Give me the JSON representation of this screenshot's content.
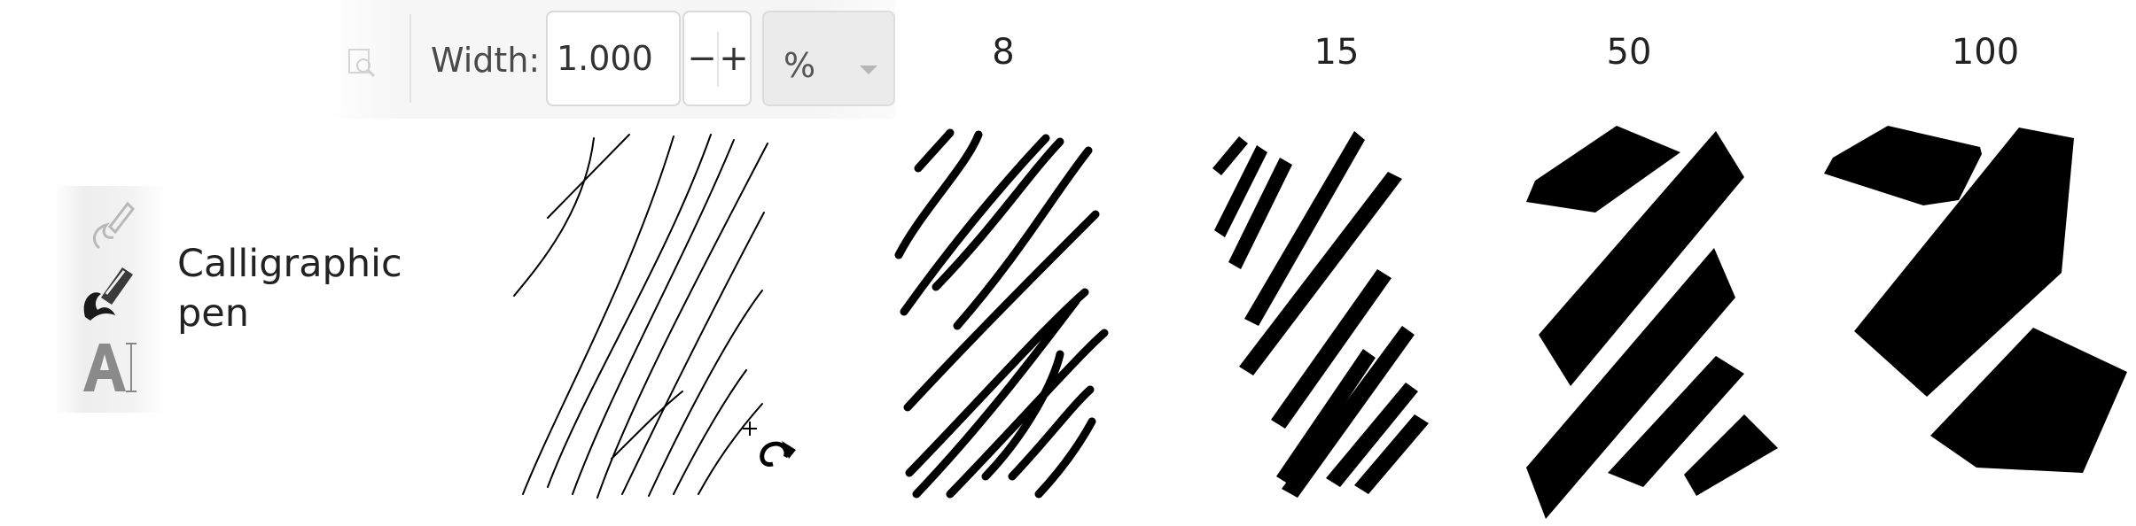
{
  "toolbar": {
    "width_label": "Width:",
    "width_value": "1.000",
    "minus_label": "−",
    "plus_label": "+",
    "unit_value": "%",
    "icons": [
      "style-icon",
      "minus-icon",
      "plus-icon",
      "dropdown-caret-icon"
    ]
  },
  "tool_palette": {
    "icons": [
      "pen-icon",
      "calligraphy-icon",
      "text-icon"
    ],
    "active_tool_label_line1": "Calligraphic",
    "active_tool_label_line2": "pen"
  },
  "samples": {
    "width_captions": [
      "8",
      "15",
      "50",
      "100"
    ]
  },
  "cursor": {
    "icon": "calligraphy-cursor-icon"
  },
  "colors": {
    "stroke": "#000000",
    "toolbar_bg": "#f5f5f5",
    "field_border": "#d9d9d9"
  }
}
